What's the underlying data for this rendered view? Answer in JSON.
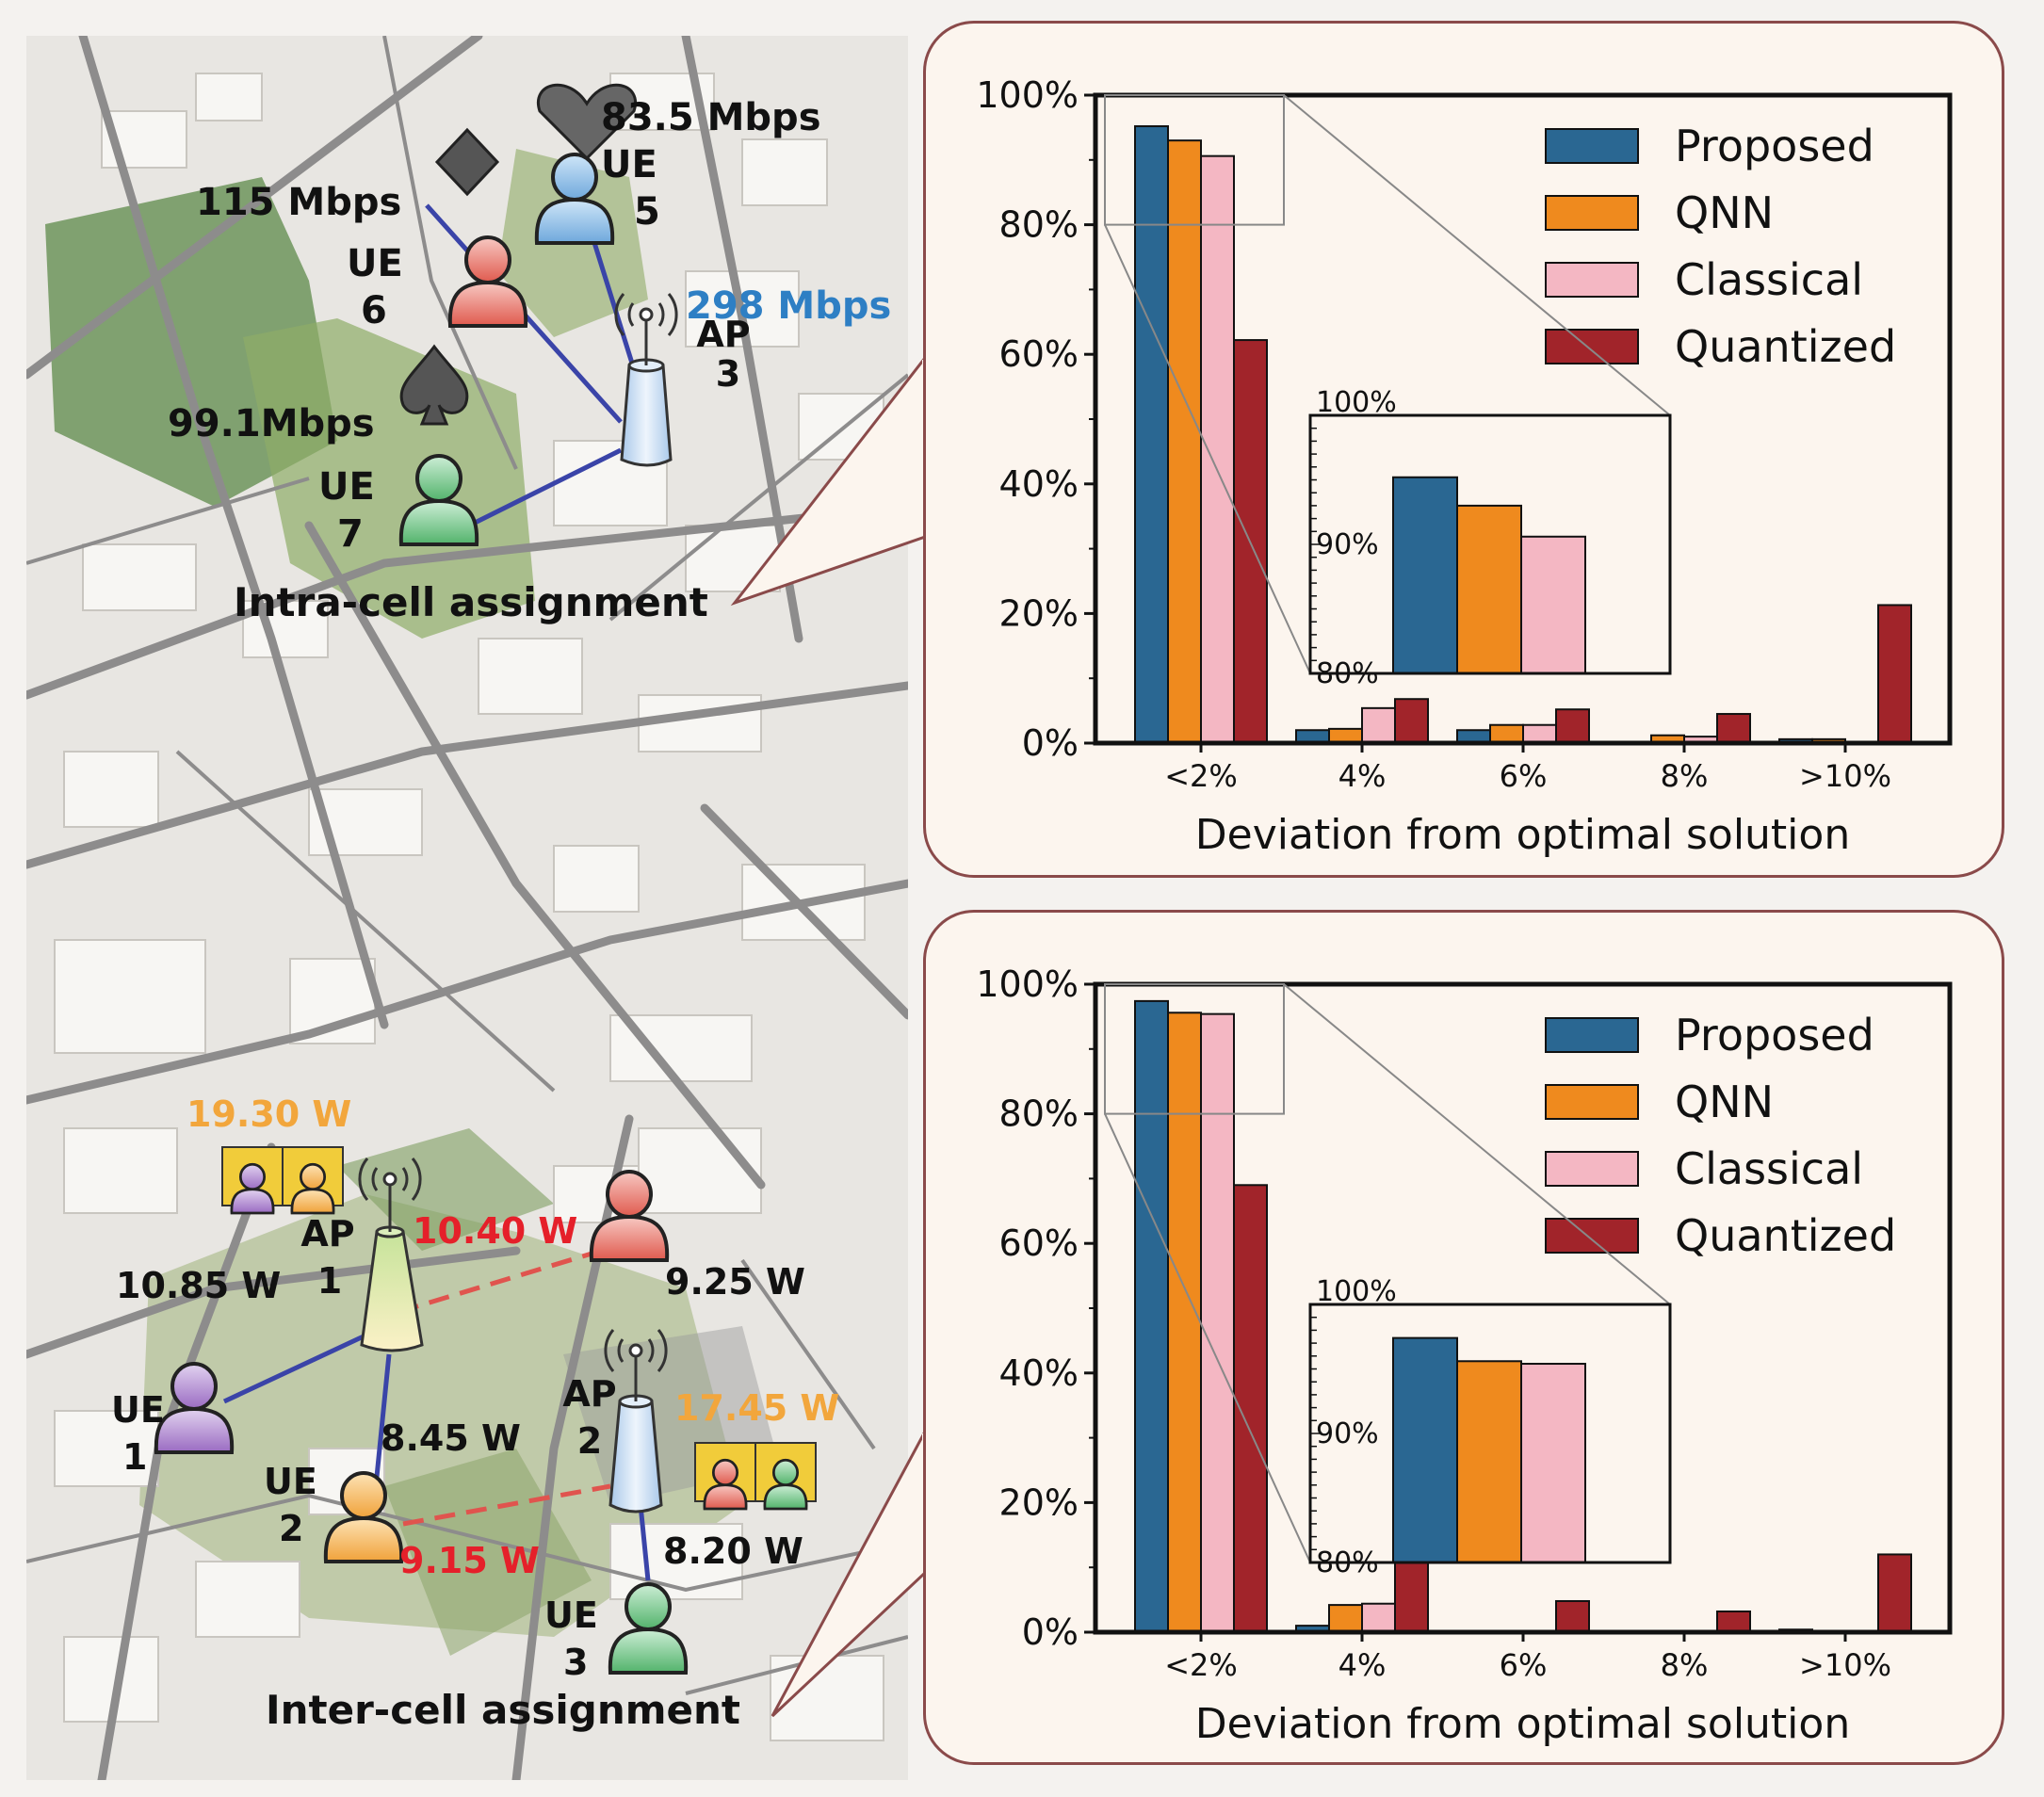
{
  "colors": {
    "proposed": "#2a6792",
    "qnn": "#ef8a1e",
    "classical": "#f4b7c3",
    "quantized": "#a1242a",
    "link": "#3a44a8",
    "interference": "#e0544e",
    "ap_power": "#f2a63c",
    "rate_highlight": "#2e7fc4",
    "callout_border": "#8a4a4a",
    "callout_fill": "#fcf5ee"
  },
  "map": {
    "intra": {
      "caption": "Intra-cell assignment",
      "ap": {
        "label": "AP",
        "index": "3",
        "rate": "298 Mbps"
      },
      "ues": [
        {
          "label": "UE",
          "index": "5",
          "rate": "83.5 Mbps",
          "suit": "heart-icon",
          "color": "blue"
        },
        {
          "label": "UE",
          "index": "6",
          "rate": "115 Mbps",
          "suit": "diamond-icon",
          "color": "red"
        },
        {
          "label": "UE",
          "index": "7",
          "rate": "99.1Mbps",
          "suit": "spade-icon",
          "color": "green"
        }
      ]
    },
    "inter": {
      "caption": "Inter-cell assignment",
      "ap1": {
        "label": "AP",
        "index": "1",
        "power": "19.30 W"
      },
      "ap2": {
        "label": "AP",
        "index": "2",
        "power": "17.45 W"
      },
      "ues": [
        {
          "label": "UE",
          "index": "1",
          "power": "10.85 W"
        },
        {
          "label": "UE",
          "index": "2",
          "power": "8.45 W",
          "interference": "9.15 W"
        },
        {
          "label": "UE",
          "index": "3",
          "power": "8.20 W"
        }
      ],
      "top_ue": {
        "power": "9.25 W",
        "interference": "10.40 W"
      }
    }
  },
  "chart_data": [
    {
      "type": "bar",
      "categories": [
        "<2%",
        "4%",
        "6%",
        "8%",
        ">10%"
      ],
      "xlabel": "Deviation from optimal solution",
      "ylabel": "",
      "ylim": [
        0,
        100
      ],
      "yticks": [
        "0%",
        "20%",
        "40%",
        "60%",
        "80%",
        "100%"
      ],
      "legend_position": "top-right",
      "series": [
        {
          "name": "Proposed",
          "values": [
            95.2,
            2.0,
            2.0,
            0.2,
            0.6
          ]
        },
        {
          "name": "QNN",
          "values": [
            93.0,
            2.2,
            2.8,
            1.2,
            0.6
          ]
        },
        {
          "name": "Classical",
          "values": [
            90.6,
            5.4,
            2.8,
            1.0,
            0.2
          ]
        },
        {
          "name": "Quantized",
          "values": [
            62.2,
            6.8,
            5.2,
            4.5,
            21.3
          ]
        }
      ],
      "inset": {
        "ylim": [
          80,
          100
        ],
        "yticks": [
          "80%",
          "90%",
          "100%"
        ],
        "values": [
          95.2,
          93.0,
          90.6
        ]
      }
    },
    {
      "type": "bar",
      "categories": [
        "<2%",
        "4%",
        "6%",
        "8%",
        ">10%"
      ],
      "xlabel": "Deviation from optimal solution",
      "ylabel": "",
      "ylim": [
        0,
        100
      ],
      "yticks": [
        "0%",
        "20%",
        "40%",
        "60%",
        "80%",
        "100%"
      ],
      "legend_position": "top-right",
      "series": [
        {
          "name": "Proposed",
          "values": [
            97.4,
            1.0,
            0.2,
            0.2,
            0.4
          ]
        },
        {
          "name": "QNN",
          "values": [
            95.6,
            4.2,
            0.2,
            0.2,
            0.2
          ]
        },
        {
          "name": "Classical",
          "values": [
            95.4,
            4.4,
            0.2,
            0.2,
            0.2
          ]
        },
        {
          "name": "Quantized",
          "values": [
            69.0,
            11.0,
            4.8,
            3.2,
            12.0
          ]
        }
      ],
      "inset": {
        "ylim": [
          80,
          100
        ],
        "yticks": [
          "80%",
          "90%",
          "100%"
        ],
        "values": [
          97.4,
          95.6,
          95.4
        ]
      }
    }
  ]
}
